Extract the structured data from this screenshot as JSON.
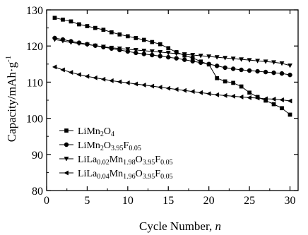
{
  "chart_data": {
    "type": "line",
    "xlabel_main": "Cycle Number, ",
    "xlabel_var": "n",
    "ylabel_main": "Capacity/mAh·g",
    "ylabel_sup": "-1",
    "xlim": [
      0,
      31
    ],
    "ylim": [
      80,
      130
    ],
    "xticks": [
      0,
      5,
      10,
      15,
      20,
      25,
      30
    ],
    "yticks": [
      80,
      90,
      100,
      110,
      120,
      130
    ],
    "legend_position": "bottom-left",
    "series": [
      {
        "label_parts": [
          [
            "LiMn",
            ""
          ],
          [
            "2",
            "sub"
          ],
          [
            "O",
            ""
          ],
          [
            "4",
            "sub"
          ]
        ],
        "marker": "square",
        "values": [
          127.8,
          127.3,
          126.8,
          126.0,
          125.5,
          125.0,
          124.5,
          123.8,
          123.2,
          122.7,
          122.2,
          121.7,
          121.1,
          120.5,
          119.4,
          118.3,
          117.4,
          116.7,
          115.7,
          114.9,
          111.1,
          110.2,
          109.8,
          108.8,
          107.1,
          105.9,
          104.9,
          103.9,
          102.8,
          101.0
        ]
      },
      {
        "label_parts": [
          [
            "LiMn",
            ""
          ],
          [
            "2",
            "sub"
          ],
          [
            "O",
            ""
          ],
          [
            "3.95",
            "sub"
          ],
          [
            "F",
            ""
          ],
          [
            "0.05",
            "sub"
          ]
        ],
        "marker": "circle",
        "values": [
          122.2,
          121.8,
          121.3,
          120.9,
          120.5,
          120.1,
          119.7,
          119.3,
          118.9,
          118.5,
          118.1,
          117.8,
          117.5,
          117.2,
          116.9,
          116.6,
          116.2,
          115.8,
          115.4,
          115.0,
          114.5,
          114.0,
          113.7,
          113.4,
          113.2,
          113.0,
          112.8,
          112.6,
          112.4,
          112.0
        ]
      },
      {
        "label_parts": [
          [
            "LiLa",
            ""
          ],
          [
            "0.02",
            "sub"
          ],
          [
            "Mn",
            ""
          ],
          [
            "1.98",
            "sub"
          ],
          [
            "O",
            ""
          ],
          [
            "3.95",
            "sub"
          ],
          [
            "F",
            ""
          ],
          [
            "0.05",
            "sub"
          ]
        ],
        "marker": "triangle-down",
        "values": [
          121.8,
          121.4,
          121.0,
          120.7,
          120.4,
          120.1,
          119.8,
          119.5,
          119.3,
          119.1,
          118.9,
          118.7,
          118.5,
          118.3,
          118.1,
          117.9,
          117.7,
          117.5,
          117.3,
          117.1,
          116.9,
          116.7,
          116.5,
          116.3,
          116.1,
          115.9,
          115.7,
          115.5,
          115.2,
          114.6
        ]
      },
      {
        "label_parts": [
          [
            "LiLa",
            ""
          ],
          [
            "0.04",
            "sub"
          ],
          [
            "Mn",
            ""
          ],
          [
            "1.96",
            "sub"
          ],
          [
            "O",
            ""
          ],
          [
            "3.95",
            "sub"
          ],
          [
            "F",
            ""
          ],
          [
            "0.05",
            "sub"
          ]
        ],
        "marker": "triangle-left",
        "values": [
          114.2,
          113.4,
          112.7,
          112.1,
          111.6,
          111.2,
          110.8,
          110.4,
          110.1,
          109.8,
          109.5,
          109.2,
          108.9,
          108.6,
          108.3,
          108.0,
          107.7,
          107.4,
          107.1,
          106.8,
          106.5,
          106.3,
          106.1,
          105.9,
          105.7,
          105.6,
          105.4,
          105.3,
          105.1,
          104.8
        ]
      }
    ]
  }
}
